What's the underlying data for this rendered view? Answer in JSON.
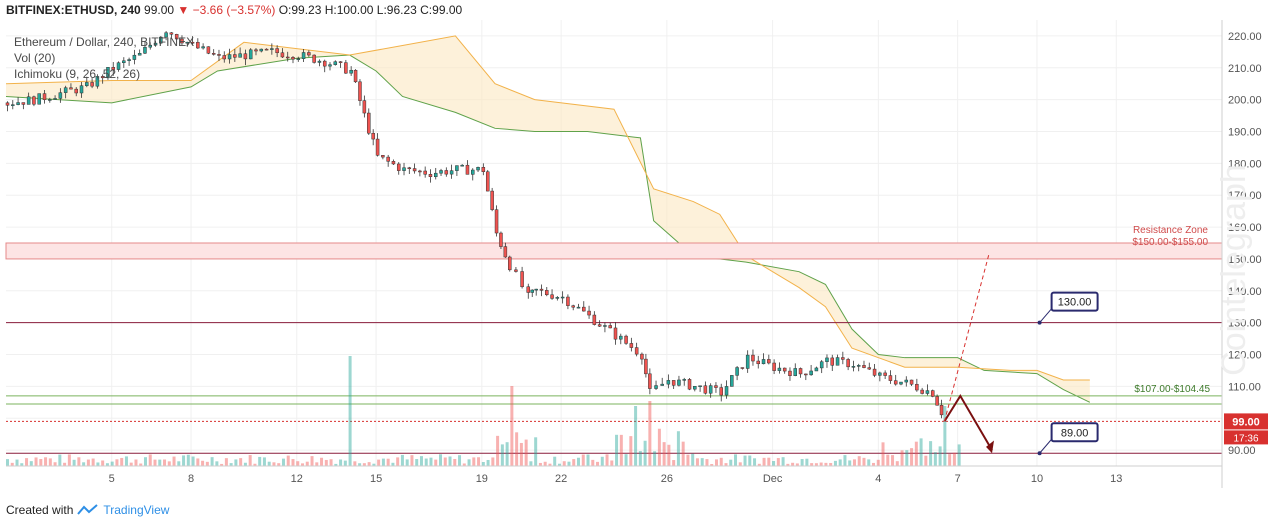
{
  "header": {
    "symbol": "BITFINEX:ETHUSD, 240",
    "last": "99.00",
    "change": "▼ −3.66 (−3.57%)",
    "ohlc": "O:99.23 H:100.00 L:96.23 C:99.00"
  },
  "legend": {
    "series": "Ethereum / Dollar, 240, BITFINEX",
    "volume": "Vol (20)",
    "ichimoku": "Ichimoku (9, 26, 52, 26)"
  },
  "footer": {
    "created": "Created with",
    "brand": "TradingView"
  },
  "watermark": "Cointelegraph",
  "colors": {
    "up": "#26a69a",
    "down": "#ef5350",
    "resistance_fill": "#fde4e4",
    "support_line": "#7bb35e",
    "level_line": "#8a1d3c",
    "arrow": "#7a1010",
    "callout_border": "#2a2a6e"
  },
  "chart_data": {
    "type": "candlestick",
    "title": "Ethereum / Dollar, 240, BITFINEX",
    "ylim": [
      85,
      225
    ],
    "y_ticks": [
      "220.00",
      "210.00",
      "200.00",
      "190.00",
      "180.00",
      "170.00",
      "160.00",
      "150.00",
      "140.00",
      "130.00",
      "120.00",
      "110.00",
      "100.00",
      "90.00"
    ],
    "x_ticks": [
      "5",
      "8",
      "12",
      "15",
      "19",
      "22",
      "26",
      "Dec",
      "4",
      "7",
      "10",
      "13"
    ],
    "x_tick_pos": [
      5,
      8,
      12,
      15,
      19,
      22,
      26,
      30,
      34,
      37,
      40,
      43
    ],
    "xlim": [
      1,
      47
    ],
    "close_path": [
      [
        1,
        199
      ],
      [
        2,
        200
      ],
      [
        3,
        202
      ],
      [
        4,
        204
      ],
      [
        5,
        210
      ],
      [
        6,
        214
      ],
      [
        7,
        222
      ],
      [
        8,
        217
      ],
      [
        9,
        213
      ],
      [
        10,
        214
      ],
      [
        11,
        215
      ],
      [
        12,
        214
      ],
      [
        13,
        212
      ],
      [
        14,
        209
      ],
      [
        14.5,
        195
      ],
      [
        15,
        182
      ],
      [
        16,
        178
      ],
      [
        17,
        177
      ],
      [
        18,
        178
      ],
      [
        19,
        178
      ],
      [
        19.5,
        158
      ],
      [
        20,
        148
      ],
      [
        20.7,
        138
      ],
      [
        21,
        140
      ],
      [
        22,
        138
      ],
      [
        23,
        132
      ],
      [
        24,
        126
      ],
      [
        25,
        120
      ],
      [
        25.3,
        108
      ],
      [
        26,
        112
      ],
      [
        27,
        110
      ],
      [
        28,
        108
      ],
      [
        29,
        119
      ],
      [
        30,
        116
      ],
      [
        31,
        114
      ],
      [
        32,
        118
      ],
      [
        33,
        117
      ],
      [
        34,
        113
      ],
      [
        35,
        111
      ],
      [
        36,
        108
      ],
      [
        36.5,
        99
      ]
    ],
    "volume_spikes": [
      [
        14,
        110
      ],
      [
        20,
        80
      ],
      [
        24.8,
        60
      ],
      [
        25.3,
        65
      ],
      [
        36.5,
        60
      ]
    ],
    "levels": [
      {
        "label": "Resistance Zone",
        "range_label": "$150.00-$155.00",
        "from": 150,
        "to": 155
      },
      {
        "label": "$107.00-$104.45",
        "from": 104.45,
        "to": 107
      },
      {
        "label": "130.00",
        "value": 130
      },
      {
        "label": "89.00",
        "value": 89
      }
    ],
    "current_price": "99.00",
    "countdown": "17:36"
  }
}
